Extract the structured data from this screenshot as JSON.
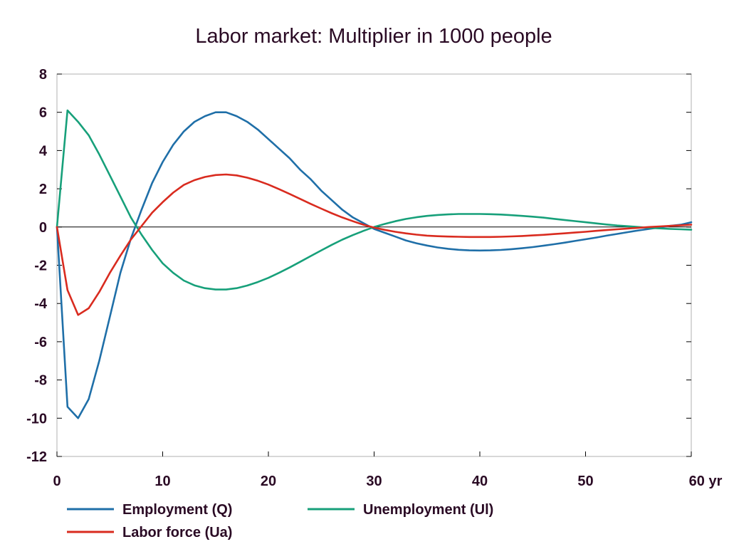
{
  "chart_data": {
    "type": "line",
    "title": "Labor market: Multiplier in 1000 people",
    "xlabel": "",
    "ylabel": "",
    "x_unit_label": "yr",
    "xlim": [
      0,
      60
    ],
    "ylim": [
      -12,
      8
    ],
    "x_ticks": [
      0,
      10,
      20,
      30,
      40,
      50,
      60
    ],
    "x_tick_labels": [
      "0",
      "10",
      "20",
      "30",
      "40",
      "50",
      "60 yr"
    ],
    "y_ticks": [
      8,
      6,
      4,
      2,
      0,
      -2,
      -4,
      -6,
      -8,
      -10,
      -12
    ],
    "y_tick_labels": [
      "8",
      "6",
      "4",
      "2",
      "0",
      "-2",
      "-4",
      "-6",
      "-8",
      "-10",
      "-12"
    ],
    "grid": false,
    "zero_line": true,
    "legend_position": "bottom",
    "x": [
      0,
      1,
      2,
      3,
      4,
      5,
      6,
      7,
      8,
      9,
      10,
      11,
      12,
      13,
      14,
      15,
      16,
      17,
      18,
      19,
      20,
      21,
      22,
      23,
      24,
      25,
      26,
      27,
      28,
      29,
      30,
      31,
      32,
      33,
      34,
      35,
      36,
      37,
      38,
      39,
      40,
      41,
      42,
      43,
      44,
      45,
      46,
      47,
      48,
      49,
      50,
      51,
      52,
      53,
      54,
      55,
      56,
      57,
      58,
      59,
      60
    ],
    "series": [
      {
        "name": "Employment (Q)",
        "color": "#1f6fa8",
        "values": [
          0,
          -9.4,
          -10.0,
          -9.0,
          -7.0,
          -4.7,
          -2.4,
          -0.6,
          0.9,
          2.3,
          3.4,
          4.3,
          5.0,
          5.5,
          5.8,
          6.0,
          6.0,
          5.8,
          5.5,
          5.1,
          4.6,
          4.1,
          3.6,
          3.0,
          2.5,
          1.9,
          1.4,
          0.9,
          0.5,
          0.2,
          -0.1,
          -0.3,
          -0.5,
          -0.7,
          -0.85,
          -0.97,
          -1.07,
          -1.14,
          -1.19,
          -1.22,
          -1.23,
          -1.22,
          -1.2,
          -1.16,
          -1.11,
          -1.05,
          -0.98,
          -0.9,
          -0.82,
          -0.73,
          -0.64,
          -0.55,
          -0.45,
          -0.36,
          -0.27,
          -0.18,
          -0.1,
          -0.02,
          0.06,
          0.12,
          0.25
        ]
      },
      {
        "name": "Unemployment (Ul)",
        "color": "#17a07a",
        "values": [
          0,
          6.1,
          5.5,
          4.8,
          3.8,
          2.7,
          1.6,
          0.5,
          -0.4,
          -1.2,
          -1.9,
          -2.4,
          -2.8,
          -3.05,
          -3.2,
          -3.27,
          -3.27,
          -3.2,
          -3.06,
          -2.88,
          -2.66,
          -2.4,
          -2.12,
          -1.82,
          -1.52,
          -1.22,
          -0.93,
          -0.66,
          -0.42,
          -0.2,
          0.0,
          0.16,
          0.3,
          0.42,
          0.51,
          0.58,
          0.63,
          0.66,
          0.68,
          0.68,
          0.68,
          0.67,
          0.65,
          0.62,
          0.58,
          0.54,
          0.49,
          0.43,
          0.37,
          0.31,
          0.25,
          0.19,
          0.13,
          0.08,
          0.04,
          0.0,
          -0.04,
          -0.07,
          -0.1,
          -0.12,
          -0.14
        ]
      },
      {
        "name": "Labor force (Ua)",
        "color": "#d92b1f",
        "values": [
          0,
          -3.3,
          -4.6,
          -4.25,
          -3.4,
          -2.4,
          -1.5,
          -0.65,
          0.05,
          0.75,
          1.3,
          1.8,
          2.2,
          2.45,
          2.62,
          2.72,
          2.75,
          2.7,
          2.58,
          2.42,
          2.22,
          1.98,
          1.73,
          1.47,
          1.21,
          0.96,
          0.72,
          0.5,
          0.3,
          0.12,
          -0.03,
          -0.15,
          -0.25,
          -0.33,
          -0.4,
          -0.45,
          -0.48,
          -0.5,
          -0.51,
          -0.52,
          -0.52,
          -0.52,
          -0.51,
          -0.49,
          -0.47,
          -0.44,
          -0.41,
          -0.37,
          -0.33,
          -0.29,
          -0.25,
          -0.2,
          -0.16,
          -0.12,
          -0.08,
          -0.04,
          0.0,
          0.03,
          0.06,
          0.09,
          0.12
        ]
      }
    ]
  }
}
